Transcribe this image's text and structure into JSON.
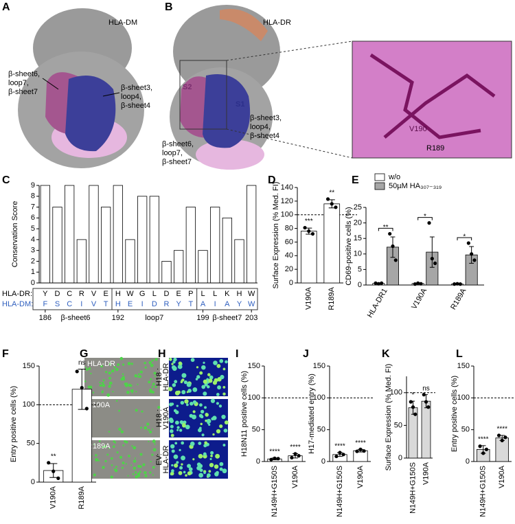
{
  "chart_data": [
    {
      "panel": "C",
      "type": "bar",
      "ylabel": "Conservation Score",
      "x": [
        186,
        187,
        188,
        189,
        190,
        191,
        192,
        193,
        194,
        195,
        196,
        197,
        198,
        199,
        200,
        201,
        202,
        203
      ],
      "xticks": [
        186,
        192,
        199,
        203
      ],
      "values": [
        9,
        7,
        9,
        4,
        9,
        7,
        9,
        4,
        8,
        8,
        2,
        3,
        7,
        3,
        7,
        6,
        4,
        9
      ],
      "color": "#ffffff",
      "ylim": [
        0,
        9
      ],
      "yticks": [
        0,
        1,
        2,
        3,
        4,
        5,
        6,
        7,
        8,
        9
      ],
      "rows": [
        {
          "label": "HLA-DR:",
          "color": "#000000",
          "residues": [
            "Y",
            "D",
            "C",
            "R",
            "V",
            "E",
            "H",
            "W",
            "G",
            "L",
            "D",
            "E",
            "P",
            "L",
            "L",
            "K",
            "H",
            "W"
          ]
        },
        {
          "label": "HLA-DM:",
          "color": "#2f5fbf",
          "residues": [
            "F",
            "S",
            "C",
            "I",
            "V",
            "T",
            "H",
            "E",
            "I",
            "D",
            "R",
            "Y",
            "T",
            "A",
            "I",
            "A",
            "Y",
            "W"
          ]
        }
      ],
      "regions": [
        "β-sheet6",
        "loop7",
        "β-sheet7"
      ]
    },
    {
      "panel": "D",
      "type": "bar",
      "ylabel": "Surface Expression (% Med. FI)",
      "categories": [
        "V190A",
        "R189A"
      ],
      "values": [
        76,
        116
      ],
      "errors": [
        4.5,
        6
      ],
      "points": [
        [
          81,
          76,
          72
        ],
        [
          123,
          116,
          111
        ]
      ],
      "significance": [
        "***",
        "**"
      ],
      "reference": 100,
      "color": "#ffffff",
      "ylim": [
        0,
        140
      ],
      "yticks": [
        0,
        20,
        40,
        60,
        80,
        100,
        120,
        140
      ]
    },
    {
      "panel": "E",
      "type": "bar",
      "ylabel": "CD69-positive cells (%)",
      "categories": [
        "HLA-DR1",
        "V190A",
        "R189A"
      ],
      "series": [
        {
          "name": "w/o",
          "color": "#ffffff",
          "values": [
            0.5,
            0.5,
            0.3
          ],
          "points": [
            [
              0.6,
              0.4,
              0.6
            ],
            [
              0.3,
              0.6,
              0.4
            ],
            [
              0.3,
              0.4,
              0.3
            ]
          ]
        },
        {
          "name": "50µM HA₃₀₇₋₃₁₉",
          "color": "#a6a6a6",
          "values": [
            12.2,
            10.6,
            9.7
          ],
          "errors": [
            3.3,
            4.9,
            2.7
          ],
          "points": [
            [
              16.5,
              12.5,
              8
            ],
            [
              20,
              8.5,
              7
            ],
            [
              13.5,
              10,
              8
            ]
          ]
        }
      ],
      "significance": [
        "**",
        "*",
        "*"
      ],
      "ylim": [
        0,
        25
      ],
      "yticks": [
        0,
        5,
        10,
        15,
        20,
        25
      ]
    },
    {
      "panel": "F",
      "type": "bar",
      "ylabel": "Entry positive cells (%)",
      "categories": [
        "V190A",
        "R189A"
      ],
      "values": [
        15,
        120
      ],
      "errors": [
        9,
        26
      ],
      "points": [
        [
          25,
          14,
          5
        ],
        [
          143,
          122,
          95
        ]
      ],
      "significance": [
        "**",
        "ns"
      ],
      "reference": 100,
      "color": "#ffffff",
      "ylim": [
        0,
        150
      ],
      "yticks": [
        0,
        50,
        100,
        150
      ]
    },
    {
      "panel": "I",
      "type": "bar",
      "ylabel": "H18N11 positive cells (%)",
      "categories": [
        "N149H+G150S",
        "V190A"
      ],
      "values": [
        4,
        9
      ],
      "errors": [
        1.5,
        3.5
      ],
      "points": [
        [
          3,
          5,
          4.5
        ],
        [
          6,
          12,
          9
        ]
      ],
      "significance": [
        "****",
        "****"
      ],
      "reference": 100,
      "color": "#ffffff",
      "ylim": [
        0,
        150
      ],
      "yticks": [
        0,
        50,
        100,
        150
      ]
    },
    {
      "panel": "J",
      "type": "bar",
      "ylabel": "H17-mediated entry (%)",
      "categories": [
        "N149H+G150S",
        "V190A"
      ],
      "values": [
        11,
        17
      ],
      "errors": [
        3,
        2
      ],
      "points": [
        [
          8,
          14,
          11
        ],
        [
          16,
          19,
          16.5
        ]
      ],
      "significance": [
        "****",
        "****"
      ],
      "reference": 100,
      "color": "#ffffff",
      "ylim": [
        0,
        150
      ],
      "yticks": [
        0,
        50,
        100,
        150
      ]
    },
    {
      "panel": "K",
      "type": "bar",
      "ylabel": "Surface Expression (% Med. FI)",
      "categories": [
        "N149H+G150S",
        "V190A"
      ],
      "values": [
        77,
        87
      ],
      "errors": [
        10,
        10
      ],
      "points": [
        [
          86,
          78,
          67
        ],
        [
          97,
          86,
          78
        ]
      ],
      "significance": [
        "*",
        "ns"
      ],
      "reference": 100,
      "color": "#d9d9d9",
      "ylim": [
        0,
        125
      ],
      "yticks": [
        0,
        50,
        100
      ]
    },
    {
      "panel": "L",
      "type": "bar",
      "ylabel": "Entry positive cells (%)",
      "categories": [
        "N149H+G150S",
        "V190A"
      ],
      "values": [
        19,
        37
      ],
      "errors": [
        6,
        4
      ],
      "points": [
        [
          24,
          13,
          19
        ],
        [
          41,
          33,
          38
        ]
      ],
      "significance": [
        "****",
        "****"
      ],
      "reference": 100,
      "color": "#d9d9d9",
      "ylim": [
        0,
        150
      ],
      "yticks": [
        0,
        50,
        100,
        150
      ]
    }
  ],
  "images": {
    "A": {
      "label": "A",
      "protein": "HLA-DM",
      "left_region": [
        "β-sheet6,",
        "loop7,",
        "β-sheet7"
      ],
      "right_region": [
        "β-sheet3,",
        "loop4,",
        "β-sheet4"
      ]
    },
    "B": {
      "label": "B",
      "protein": "HLA-DR",
      "pockets": [
        "S2",
        "S1"
      ],
      "right_region": [
        "β-sheet3,",
        "loop4,",
        "β-sheet4"
      ],
      "bottom_region": [
        "β-sheet6,",
        "loop7,",
        "β-sheet7"
      ],
      "residues": [
        "V190",
        "R189"
      ]
    },
    "G": {
      "label": "G",
      "panels": [
        "HLA-DR",
        "V190A",
        "R189A"
      ]
    },
    "H": {
      "label": "H",
      "panels": [
        [
          "H18 :",
          "HLA-DR"
        ],
        [
          "H18 :",
          "V190A"
        ],
        [
          "EV:",
          "HLA-DR"
        ]
      ]
    }
  }
}
